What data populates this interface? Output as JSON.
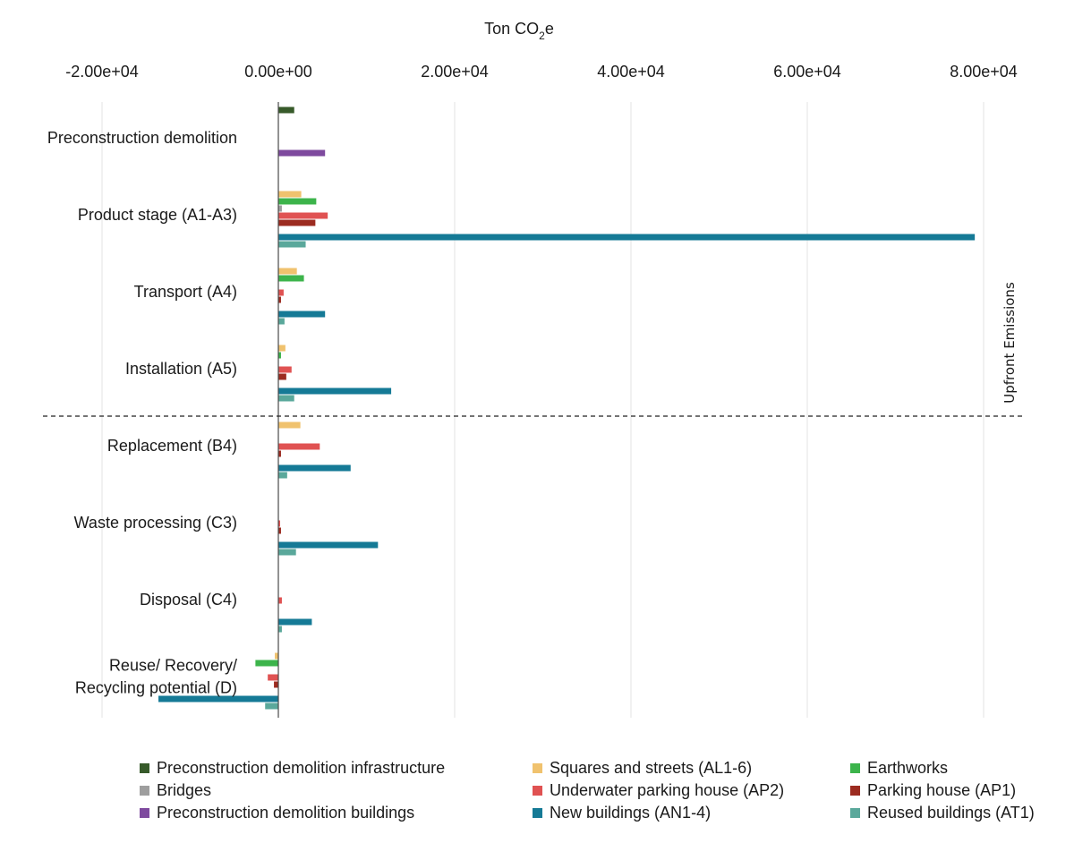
{
  "chart_data": {
    "type": "bar",
    "orientation": "horizontal",
    "title": "",
    "xlabel": "Ton CO2e",
    "xlabel_parts": {
      "main": "Ton CO",
      "sub": "2",
      "tail": "e"
    },
    "xlim": [
      -20000,
      85000
    ],
    "xticks": [
      -20000,
      0,
      20000,
      40000,
      60000,
      80000
    ],
    "xtick_labels": [
      "-2.00e+04",
      "0.00e+00",
      "2.00e+04",
      "4.00e+04",
      "6.00e+04",
      "8.00e+04"
    ],
    "categories": [
      "Preconstruction demolition",
      "Product stage (A1-A3)",
      "Transport (A4)",
      "Installation (A5)",
      "Replacement (B4)",
      "Waste processing (C3)",
      "Disposal (C4)",
      "Reuse/ Recovery/\nRecycling potential  (D)"
    ],
    "category_lines": [
      [
        "Preconstruction demolition"
      ],
      [
        "Product stage (A1-A3)"
      ],
      [
        "Transport (A4)"
      ],
      [
        "Installation (A5)"
      ],
      [
        "Replacement (B4)"
      ],
      [
        "Waste processing (C3)"
      ],
      [
        "Disposal (C4)"
      ],
      [
        "Reuse/ Recovery/",
        "Recycling potential  (D)"
      ]
    ],
    "series": [
      {
        "name": "Preconstruction demolition  infrastructure",
        "color": "#375a2a",
        "values": [
          1800,
          0,
          0,
          0,
          0,
          0,
          0,
          0
        ]
      },
      {
        "name": "Squares and streets (AL1-6)",
        "color": "#f0c26e",
        "values": [
          0,
          2600,
          2100,
          800,
          2500,
          0,
          0,
          -400
        ]
      },
      {
        "name": "Earthworks",
        "color": "#3cb44b",
        "values": [
          0,
          4300,
          2900,
          300,
          0,
          0,
          0,
          -2600
        ]
      },
      {
        "name": "Bridges",
        "color": "#9e9e9e",
        "values": [
          0,
          400,
          0,
          0,
          0,
          0,
          0,
          0
        ]
      },
      {
        "name": "Underwater parking house (AP2)",
        "color": "#e05252",
        "values": [
          0,
          5600,
          600,
          1500,
          4700,
          200,
          400,
          -1200
        ]
      },
      {
        "name": "Parking house (AP1)",
        "color": "#9c2b20",
        "values": [
          0,
          4200,
          300,
          900,
          300,
          300,
          0,
          -500
        ]
      },
      {
        "name": "Preconstruction demolition  buildings",
        "color": "#7e4a9e",
        "values": [
          5300,
          0,
          0,
          0,
          0,
          0,
          0,
          0
        ]
      },
      {
        "name": "New buildings (AN1-4)",
        "color": "#157a96",
        "values": [
          0,
          79000,
          5300,
          12800,
          8200,
          11300,
          3800,
          -13600
        ]
      },
      {
        "name": "Reused buildings (AT1)",
        "color": "#5aa89b",
        "values": [
          0,
          3100,
          700,
          1800,
          1000,
          2000,
          400,
          -1500
        ]
      }
    ],
    "grid": true,
    "divider": {
      "after_category": 3,
      "style": "dashed"
    },
    "annotation": "Upfront Emissions",
    "legend_placement": "bottom",
    "legend_columns": [
      [
        "Preconstruction demolition  infrastructure",
        "Bridges",
        "Preconstruction demolition  buildings"
      ],
      [
        "Squares and streets (AL1-6)",
        "Underwater parking house (AP2)",
        "New buildings (AN1-4)"
      ],
      [
        "Earthworks",
        "Parking house (AP1)",
        "Reused buildings (AT1)"
      ]
    ]
  }
}
